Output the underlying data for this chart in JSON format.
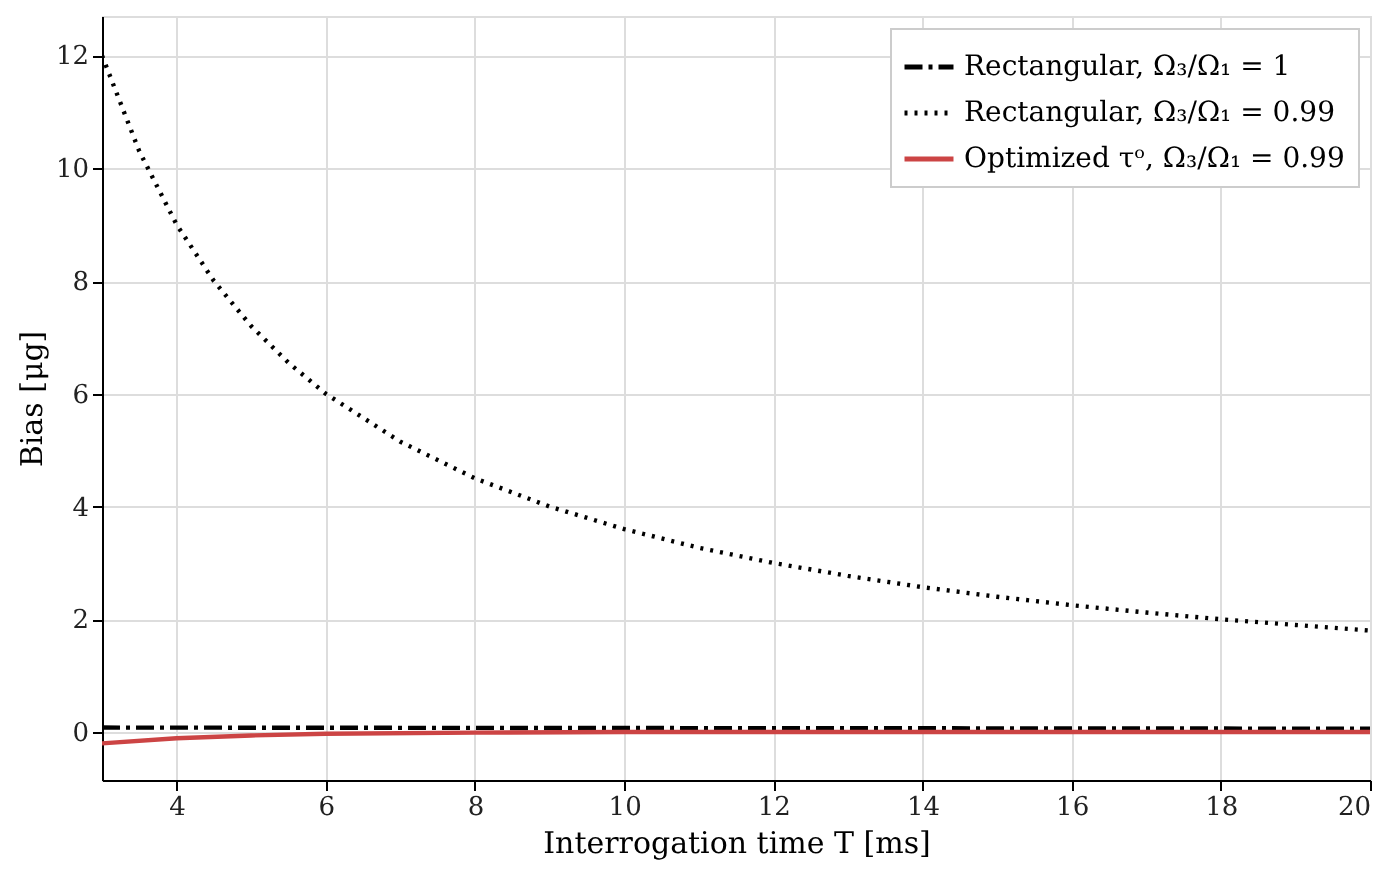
{
  "chart_data": {
    "type": "line",
    "xlabel": "Interrogation time T [ms]",
    "ylabel": "Bias [μg]",
    "xlim": [
      3,
      20
    ],
    "xticks": [
      4,
      6,
      8,
      10,
      12,
      14,
      16,
      18,
      20
    ],
    "ylim": [
      -0.85,
      12.7
    ],
    "yticks": [
      0,
      2,
      4,
      6,
      8,
      10,
      12
    ],
    "grid": true,
    "legend": "top right",
    "series": [
      {
        "name": "Rectangular, Ω₃/Ω₁ = 1",
        "color": "#000000",
        "line_style": "dashdot",
        "x": [
          3,
          20
        ],
        "values": [
          0.08,
          0.06
        ]
      },
      {
        "name": "Rectangular, Ω₃/Ω₁ = 0.99",
        "color": "#000000",
        "line_style": "dotted",
        "x": [
          3,
          3.5,
          4,
          4.5,
          5,
          5.5,
          6,
          7,
          8,
          9,
          10,
          11,
          12,
          13,
          14,
          15,
          16,
          17,
          18,
          19,
          20
        ],
        "values": [
          12,
          10.3,
          9,
          8,
          7.2,
          6.55,
          6,
          5.15,
          4.5,
          4,
          3.6,
          3.27,
          3,
          2.77,
          2.57,
          2.4,
          2.25,
          2.12,
          2,
          1.9,
          1.8
        ]
      },
      {
        "name": "Optimized τᵒ, Ω₃/Ω₁ = 0.99",
        "color": "#cc4444",
        "line_style": "solid",
        "x": [
          3,
          4,
          5,
          6,
          8,
          10,
          14,
          20
        ],
        "values": [
          -0.2,
          -0.11,
          -0.06,
          -0.03,
          -0.01,
          0.0,
          0.0,
          0.0
        ]
      }
    ]
  }
}
